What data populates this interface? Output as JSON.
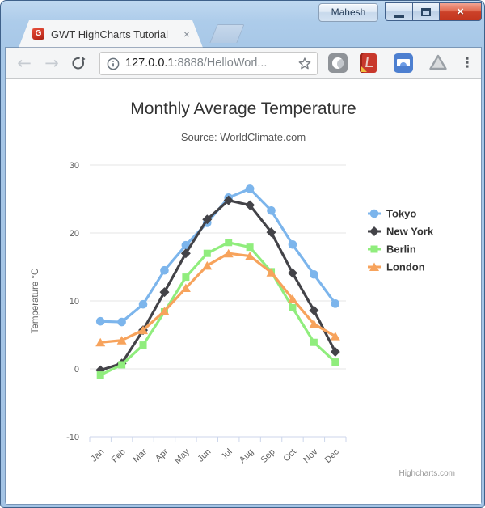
{
  "window": {
    "profile_name": "Mahesh",
    "close_glyph": "×"
  },
  "tab": {
    "favicon_text": "G",
    "title": "GWT HighCharts Tutorial",
    "close_glyph": "×"
  },
  "toolbar": {
    "back_glyph": "←",
    "forward_glyph": "→",
    "menu_glyph": "⋮",
    "url_host": "127.0.0.1",
    "url_rest": ":8888/HelloWorl..."
  },
  "chart_data": {
    "type": "line",
    "title": "Monthly Average Temperature",
    "subtitle": "Source: WorldClimate.com",
    "categories": [
      "Jan",
      "Feb",
      "Mar",
      "Apr",
      "May",
      "Jun",
      "Jul",
      "Aug",
      "Sep",
      "Oct",
      "Nov",
      "Dec"
    ],
    "xlabel": "",
    "ylabel": "Temperature °C",
    "ylim": [
      -10,
      30
    ],
    "ytick_interval": 10,
    "grid": "horizontal",
    "legend_position": "right",
    "credit": "Highcharts.com",
    "colors": {
      "grid": "#e6e6e6",
      "axis_line": "#ccd6eb",
      "axis_label": "#606060",
      "legend_text": "#333333",
      "credit_text": "#999999"
    },
    "series": [
      {
        "name": "Tokyo",
        "color": "#7cb5ec",
        "marker": "circle",
        "values": [
          7.0,
          6.9,
          9.5,
          14.5,
          18.2,
          21.5,
          25.2,
          26.5,
          23.3,
          18.3,
          13.9,
          9.6
        ]
      },
      {
        "name": "New York",
        "color": "#434348",
        "marker": "diamond",
        "values": [
          -0.2,
          0.8,
          5.7,
          11.3,
          17.0,
          22.0,
          24.8,
          24.1,
          20.1,
          14.1,
          8.6,
          2.5
        ]
      },
      {
        "name": "Berlin",
        "color": "#90ed7d",
        "marker": "square",
        "values": [
          -0.9,
          0.6,
          3.5,
          8.4,
          13.5,
          17.0,
          18.6,
          17.9,
          14.3,
          9.0,
          3.9,
          1.0
        ]
      },
      {
        "name": "London",
        "color": "#f7a35c",
        "marker": "triangle",
        "values": [
          3.9,
          4.2,
          5.7,
          8.5,
          11.9,
          15.2,
          17.0,
          16.6,
          14.2,
          10.3,
          6.6,
          4.8
        ]
      }
    ]
  }
}
